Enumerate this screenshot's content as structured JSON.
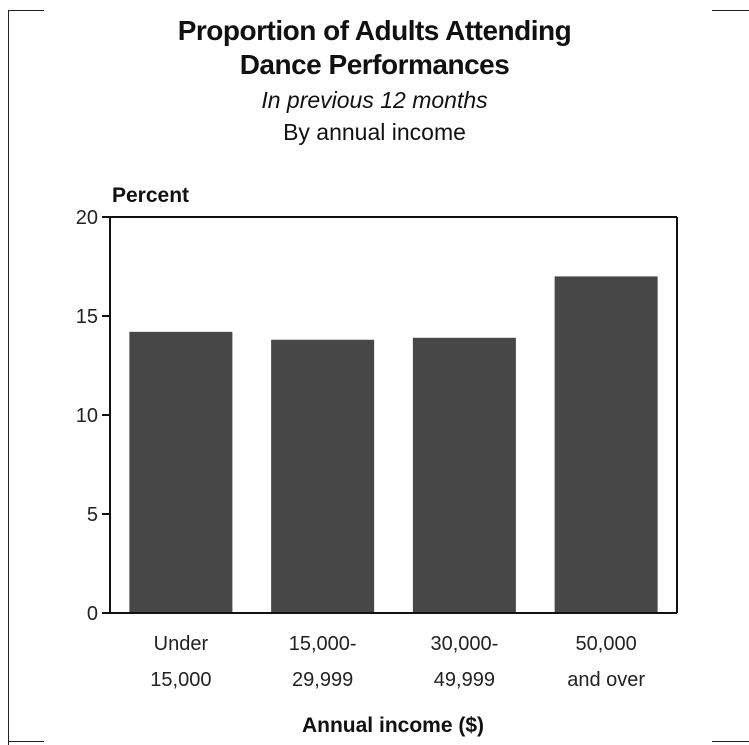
{
  "chart_data": {
    "type": "bar",
    "title": "Proportion of Adults Attending Dance Performances",
    "title_lines": [
      "Proportion of Adults Attending",
      "Dance Performances"
    ],
    "subtitle_italic": "In previous 12 months",
    "subtitle": "By annual income",
    "ylabel": "Percent",
    "xlabel": "Annual income ($)",
    "categories": [
      "Under 15,000",
      "15,000-29,999",
      "30,000-49,999",
      "50,000 and over"
    ],
    "category_lines": [
      [
        "Under",
        "15,000"
      ],
      [
        "15,000-",
        "29,999"
      ],
      [
        "30,000-",
        "49,999"
      ],
      [
        "50,000",
        "and over"
      ]
    ],
    "values": [
      14.2,
      13.8,
      13.9,
      17.0
    ],
    "ylim": [
      0,
      20
    ],
    "yticks": [
      0,
      5,
      10,
      15,
      20
    ],
    "grid": false,
    "bar_color": "#474747"
  }
}
